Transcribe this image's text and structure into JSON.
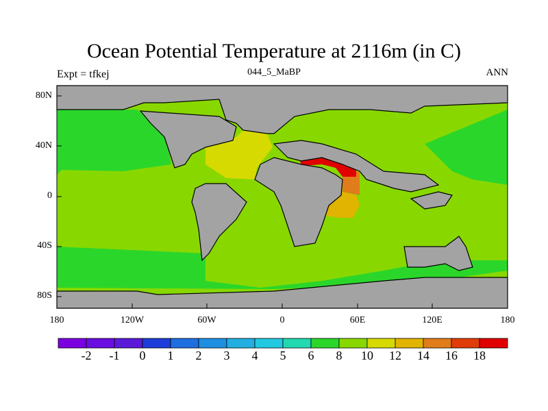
{
  "title": "Ocean Potential Temperature at 2116m (in C)",
  "left_label": "Expt = tfkej",
  "center_label": "044_5_MaBP",
  "right_label": "ANN",
  "lat_labels": [
    "80N",
    "40N",
    "0",
    "40S",
    "80S"
  ],
  "lon_labels": [
    "180",
    "120W",
    "60W",
    "0",
    "60E",
    "120E",
    "180"
  ],
  "colorbar": {
    "colors": [
      "#7b00e0",
      "#6a0de0",
      "#5a1ad8",
      "#1e3dd8",
      "#1f6ee0",
      "#1e8fe0",
      "#22aee0",
      "#22c8e0",
      "#22d8b0",
      "#2bd62b",
      "#88d800",
      "#d6da00",
      "#e0b400",
      "#e07c1a",
      "#e03c08",
      "#e00000"
    ],
    "labels": [
      "-2",
      "-1",
      "0",
      "1",
      "2",
      "3",
      "4",
      "5",
      "6",
      "8",
      "10",
      "12",
      "14",
      "16",
      "18"
    ]
  },
  "colors": {
    "land": "#a3a3a3",
    "temp_6_8": "#2bd62b",
    "temp_8_10": "#88d800",
    "temp_10_12": "#d6da00",
    "temp_12_14": "#e0b400",
    "temp_14_16": "#e07c1a",
    "temp_16_18": "#e03c08",
    "temp_18plus": "#e00000"
  }
}
